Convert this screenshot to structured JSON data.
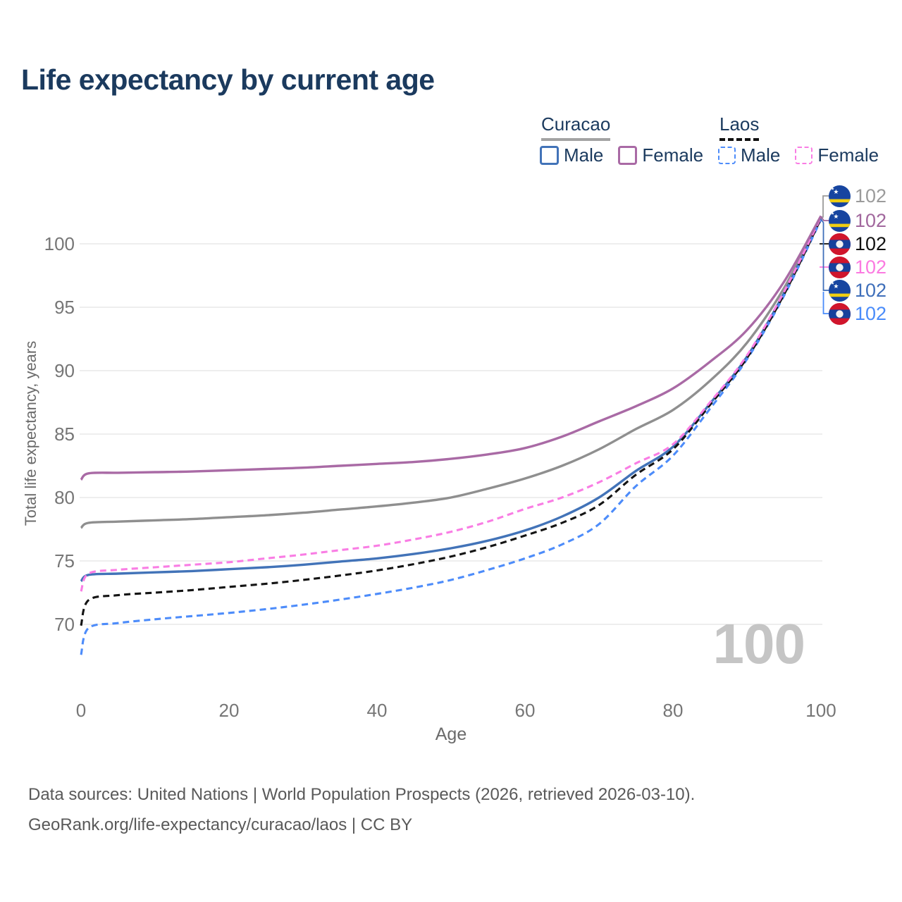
{
  "header": {
    "title": "Life expectancy by current age"
  },
  "legend": {
    "groups": [
      {
        "label": "Curacao",
        "line_style": "solid",
        "line_color": "#8f8f8f",
        "items": [
          {
            "label": "Male",
            "color": "#4273b8",
            "dashed": false
          },
          {
            "label": "Female",
            "color": "#a96aa5",
            "dashed": false
          }
        ]
      },
      {
        "label": "Laos",
        "line_style": "dashed",
        "line_color": "#141414",
        "items": [
          {
            "label": "Male",
            "color": "#4d8cfa",
            "dashed": true
          },
          {
            "label": "Female",
            "color": "#f97de4",
            "dashed": true
          }
        ]
      }
    ]
  },
  "chart_data": {
    "type": "line",
    "title": "Life expectancy by current age",
    "xlabel": "Age",
    "ylabel": "Total life expectancy, years",
    "xlim": [
      0,
      100
    ],
    "ylim": [
      66,
      103
    ],
    "grid": true,
    "legend_position": "top-right",
    "x_ticks": [
      0,
      20,
      40,
      60,
      80,
      100
    ],
    "y_ticks": [
      70,
      75,
      80,
      85,
      90,
      95,
      100
    ],
    "ages": [
      0,
      1,
      5,
      10,
      15,
      20,
      25,
      30,
      35,
      40,
      45,
      50,
      55,
      60,
      65,
      70,
      75,
      80,
      85,
      90,
      95,
      100
    ],
    "series": [
      {
        "id": "curacao_total",
        "name": "Curacao",
        "country": "Curacao",
        "sex": "total",
        "flag": "curacao",
        "color": "#8f8f8f",
        "dashed": false,
        "end_label": "102",
        "label_color": "#9b9b9b",
        "values": [
          77.6,
          78.0,
          78.1,
          78.2,
          78.3,
          78.45,
          78.6,
          78.8,
          79.05,
          79.3,
          79.6,
          80.0,
          80.7,
          81.5,
          82.5,
          83.8,
          85.4,
          86.9,
          89.2,
          92.2,
          96.5,
          102.1
        ]
      },
      {
        "id": "curacao_female",
        "name": "Curacao Female",
        "country": "Curacao",
        "sex": "female",
        "flag": "curacao",
        "color": "#a96aa5",
        "dashed": false,
        "end_label": "102",
        "label_color": "#a1679d",
        "values": [
          81.4,
          81.9,
          81.95,
          82.0,
          82.05,
          82.15,
          82.25,
          82.35,
          82.5,
          82.65,
          82.8,
          83.05,
          83.4,
          83.9,
          84.8,
          86.0,
          87.2,
          88.6,
          90.7,
          93.2,
          97.0,
          102.2
        ]
      },
      {
        "id": "laos_total",
        "name": "Laos",
        "country": "Laos",
        "sex": "total",
        "flag": "laos",
        "color": "#141414",
        "dashed": true,
        "end_label": "102",
        "label_color": "#111111",
        "values": [
          69.9,
          71.9,
          72.3,
          72.5,
          72.7,
          72.95,
          73.2,
          73.5,
          73.85,
          74.25,
          74.75,
          75.35,
          76.1,
          77.0,
          78.0,
          79.4,
          81.8,
          83.8,
          87.3,
          91.0,
          96.0,
          102.0
        ]
      },
      {
        "id": "laos_female",
        "name": "Laos Female",
        "country": "Laos",
        "sex": "female",
        "flag": "laos",
        "color": "#f97de4",
        "dashed": true,
        "end_label": "102",
        "label_color": "#fb7ae1",
        "values": [
          72.6,
          74.0,
          74.3,
          74.5,
          74.7,
          74.9,
          75.2,
          75.5,
          75.85,
          76.2,
          76.7,
          77.3,
          78.1,
          79.1,
          80.0,
          81.2,
          82.7,
          84.2,
          87.5,
          91.2,
          96.2,
          102.1
        ]
      },
      {
        "id": "curacao_male",
        "name": "Curacao Male",
        "country": "Curacao",
        "sex": "male",
        "flag": "curacao",
        "color": "#4273b8",
        "dashed": false,
        "end_label": "102",
        "label_color": "#3f6fba",
        "values": [
          73.4,
          73.9,
          74.0,
          74.1,
          74.2,
          74.35,
          74.5,
          74.7,
          74.95,
          75.2,
          75.55,
          76.0,
          76.6,
          77.4,
          78.5,
          80.0,
          82.1,
          84.0,
          87.4,
          91.1,
          96.1,
          102.0
        ]
      },
      {
        "id": "laos_male",
        "name": "Laos Male",
        "country": "Laos",
        "sex": "male",
        "flag": "laos",
        "color": "#4d8cfa",
        "dashed": true,
        "end_label": "102",
        "label_color": "#4a8cfa",
        "values": [
          67.6,
          69.7,
          70.1,
          70.4,
          70.65,
          70.9,
          71.2,
          71.55,
          71.95,
          72.4,
          72.9,
          73.5,
          74.3,
          75.2,
          76.3,
          77.9,
          80.9,
          83.3,
          87.0,
          90.9,
          95.9,
          101.9
        ]
      }
    ]
  },
  "watermark": {
    "text": "100"
  },
  "footer": {
    "line1": "Data sources: United Nations | World Population Prospects (2026, retrieved 2026-03-10).",
    "line2": "GeoRank.org/life-expectancy/curacao/laos | CC BY"
  },
  "colors": {
    "title_navy": "#1b3a5e",
    "grid": "#e9e9e9",
    "tick_text": "#767676",
    "watermark": "#c5c5c5",
    "curacao_underline": "#a3a3a3",
    "laos_underline": "#111111"
  }
}
